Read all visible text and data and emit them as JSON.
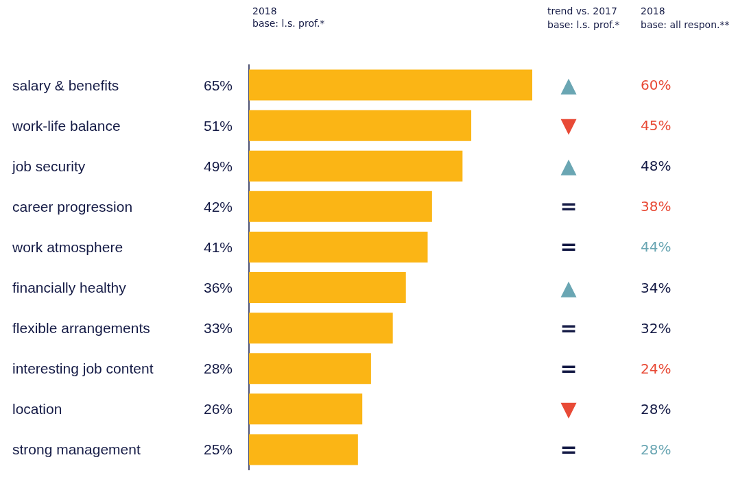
{
  "chart_data": [
    {
      "type": "bar",
      "orientation": "horizontal",
      "title": "2018",
      "subtitle": "base: l.s. prof.*",
      "categories": [
        "salary & benefits",
        "work-life balance",
        "job security",
        "career progression",
        "work atmosphere",
        "financially healthy",
        "flexible arrangements",
        "interesting job content",
        "location",
        "strong management"
      ],
      "values": [
        65,
        51,
        49,
        42,
        41,
        36,
        33,
        28,
        26,
        25
      ],
      "value_labels": [
        "65%",
        "51%",
        "49%",
        "42%",
        "41%",
        "36%",
        "33%",
        "28%",
        "26%",
        "25%"
      ],
      "color": "#fbb515"
    },
    {
      "type": "other",
      "title": "trend vs. 2017",
      "subtitle": "base: l.s. prof.*",
      "annotations": [
        "▲",
        "▼",
        "▲",
        "=",
        "=",
        "▲",
        "=",
        "=",
        "▼",
        "="
      ],
      "colors": [
        "#6aa6b3",
        "#e84a36",
        "#6aa6b3",
        "#141a45",
        "#141a45",
        "#6aa6b3",
        "#141a45",
        "#141a45",
        "#e84a36",
        "#141a45"
      ]
    },
    {
      "type": "other",
      "title": "2018",
      "subtitle": "base: all respon.**",
      "annotations": [
        "60%",
        "45%",
        "48%",
        "38%",
        "44%",
        "34%",
        "32%",
        "24%",
        "28%",
        "28%"
      ],
      "colors": [
        "#e84a36",
        "#e84a36",
        "#141a45",
        "#e84a36",
        "#6aa6b3",
        "#141a45",
        "#141a45",
        "#e84a36",
        "#141a45",
        "#6aa6b3"
      ]
    }
  ]
}
